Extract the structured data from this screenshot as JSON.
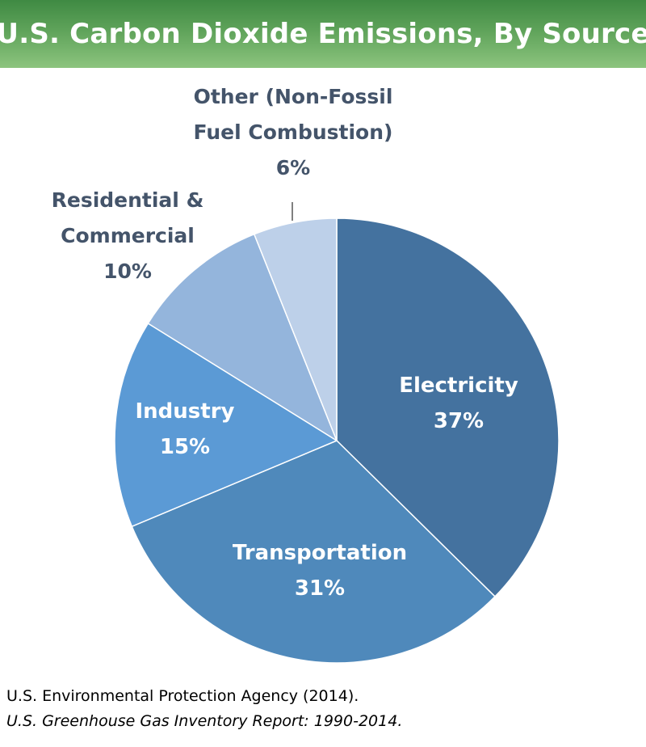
{
  "chart_data": {
    "type": "pie",
    "title": "U.S. Carbon Dioxide Emissions, By Source",
    "slices": [
      {
        "label": "Electricity",
        "value": 37,
        "value_label": "37%",
        "color": "#44729f"
      },
      {
        "label": "Transportation",
        "value": 31,
        "value_label": "31%",
        "color": "#4f89bb"
      },
      {
        "label": "Industry",
        "value": 15,
        "value_label": "15%",
        "color": "#5b9ad5"
      },
      {
        "label_lines": [
          "Residential &",
          "Commercial"
        ],
        "value": 10,
        "value_label": "10%",
        "color": "#94b5dc"
      },
      {
        "label_lines": [
          "Other (Non-Fossil",
          "Fuel Combustion)"
        ],
        "value": 6,
        "value_label": "6%",
        "color": "#bdd0e9"
      }
    ]
  },
  "source": {
    "line1": "U.S. Environmental Protection Agency (2014).",
    "line2": "U.S. Greenhouse Gas Inventory Report: 1990-2014."
  },
  "colors": {
    "title_bar": "#5fa35a",
    "outside_label_text": "#44546a",
    "inside_label_text": "#ffffff"
  }
}
